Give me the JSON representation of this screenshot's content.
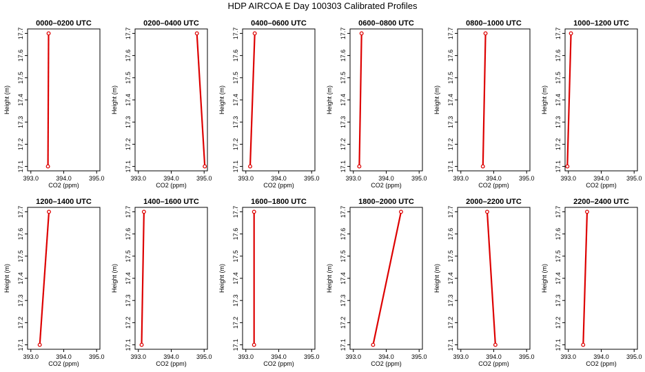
{
  "figure_title": "HDP AIRCOA E  Day 100303  Calibrated Profiles",
  "colors": {
    "series": "#dd0000",
    "axis": "#000000"
  },
  "chart_data": [
    {
      "type": "line",
      "title": "0000–0200 UTC",
      "xlabel": "CO2 (ppm)",
      "ylabel": "Height (m)",
      "xlim": [
        392.9,
        395.1
      ],
      "ylim": [
        17.08,
        17.72
      ],
      "xticks": [
        "393.0",
        "394.0",
        "395.0"
      ],
      "yticks": [
        "17.1",
        "17.2",
        "17.3",
        "17.4",
        "17.5",
        "17.6",
        "17.7"
      ],
      "points": [
        {
          "x": 393.52,
          "y": 17.1
        },
        {
          "x": 393.54,
          "y": 17.7
        }
      ]
    },
    {
      "type": "line",
      "title": "0200–0400 UTC",
      "xlabel": "CO2 (ppm)",
      "ylabel": "Height (m)",
      "xlim": [
        392.9,
        395.1
      ],
      "ylim": [
        17.08,
        17.72
      ],
      "xticks": [
        "393.0",
        "394.0",
        "395.0"
      ],
      "yticks": [
        "17.1",
        "17.2",
        "17.3",
        "17.4",
        "17.5",
        "17.6",
        "17.7"
      ],
      "points": [
        {
          "x": 395.02,
          "y": 17.1
        },
        {
          "x": 394.78,
          "y": 17.7
        }
      ]
    },
    {
      "type": "line",
      "title": "0400–0600 UTC",
      "xlabel": "CO2 (ppm)",
      "ylabel": "Height (m)",
      "xlim": [
        392.9,
        395.1
      ],
      "ylim": [
        17.08,
        17.72
      ],
      "xticks": [
        "393.0",
        "394.0",
        "395.0"
      ],
      "yticks": [
        "17.1",
        "17.2",
        "17.3",
        "17.4",
        "17.5",
        "17.6",
        "17.7"
      ],
      "points": [
        {
          "x": 393.13,
          "y": 17.1
        },
        {
          "x": 393.27,
          "y": 17.7
        }
      ]
    },
    {
      "type": "line",
      "title": "0600–0800 UTC",
      "xlabel": "CO2 (ppm)",
      "ylabel": "Height (m)",
      "xlim": [
        392.9,
        395.1
      ],
      "ylim": [
        17.08,
        17.72
      ],
      "xticks": [
        "393.0",
        "394.0",
        "395.0"
      ],
      "yticks": [
        "17.1",
        "17.2",
        "17.3",
        "17.4",
        "17.5",
        "17.6",
        "17.7"
      ],
      "points": [
        {
          "x": 393.18,
          "y": 17.1
        },
        {
          "x": 393.25,
          "y": 17.7
        }
      ]
    },
    {
      "type": "line",
      "title": "0800–1000 UTC",
      "xlabel": "CO2 (ppm)",
      "ylabel": "Height (m)",
      "xlim": [
        392.9,
        395.1
      ],
      "ylim": [
        17.08,
        17.72
      ],
      "xticks": [
        "393.0",
        "394.0",
        "395.0"
      ],
      "yticks": [
        "17.1",
        "17.2",
        "17.3",
        "17.4",
        "17.5",
        "17.6",
        "17.7"
      ],
      "points": [
        {
          "x": 393.67,
          "y": 17.1
        },
        {
          "x": 393.75,
          "y": 17.7
        }
      ]
    },
    {
      "type": "line",
      "title": "1000–1200 UTC",
      "xlabel": "CO2 (ppm)",
      "ylabel": "Height (m)",
      "xlim": [
        392.9,
        395.1
      ],
      "ylim": [
        17.08,
        17.72
      ],
      "xticks": [
        "393.0",
        "394.0",
        "395.0"
      ],
      "yticks": [
        "17.1",
        "17.2",
        "17.3",
        "17.4",
        "17.5",
        "17.6",
        "17.7"
      ],
      "points": [
        {
          "x": 392.97,
          "y": 17.1
        },
        {
          "x": 393.08,
          "y": 17.7
        }
      ]
    },
    {
      "type": "line",
      "title": "1200–1400 UTC",
      "xlabel": "CO2 (ppm)",
      "ylabel": "Height (m)",
      "xlim": [
        392.9,
        395.1
      ],
      "ylim": [
        17.08,
        17.72
      ],
      "xticks": [
        "393.0",
        "394.0",
        "395.0"
      ],
      "yticks": [
        "17.1",
        "17.2",
        "17.3",
        "17.4",
        "17.5",
        "17.6",
        "17.7"
      ],
      "points": [
        {
          "x": 393.27,
          "y": 17.1
        },
        {
          "x": 393.55,
          "y": 17.7
        }
      ]
    },
    {
      "type": "line",
      "title": "1400–1600 UTC",
      "xlabel": "CO2 (ppm)",
      "ylabel": "Height (m)",
      "xlim": [
        392.9,
        395.1
      ],
      "ylim": [
        17.08,
        17.72
      ],
      "xticks": [
        "393.0",
        "394.0",
        "395.0"
      ],
      "yticks": [
        "17.1",
        "17.2",
        "17.3",
        "17.4",
        "17.5",
        "17.6",
        "17.7"
      ],
      "points": [
        {
          "x": 393.1,
          "y": 17.1
        },
        {
          "x": 393.17,
          "y": 17.7
        }
      ]
    },
    {
      "type": "line",
      "title": "1600–1800 UTC",
      "xlabel": "CO2 (ppm)",
      "ylabel": "Height (m)",
      "xlim": [
        392.9,
        395.1
      ],
      "ylim": [
        17.08,
        17.72
      ],
      "xticks": [
        "393.0",
        "394.0",
        "395.0"
      ],
      "yticks": [
        "17.1",
        "17.2",
        "17.3",
        "17.4",
        "17.5",
        "17.6",
        "17.7"
      ],
      "points": [
        {
          "x": 393.25,
          "y": 17.1
        },
        {
          "x": 393.25,
          "y": 17.7
        }
      ]
    },
    {
      "type": "line",
      "title": "1800–2000 UTC",
      "xlabel": "CO2 (ppm)",
      "ylabel": "Height (m)",
      "xlim": [
        392.9,
        395.1
      ],
      "ylim": [
        17.08,
        17.72
      ],
      "xticks": [
        "393.0",
        "394.0",
        "395.0"
      ],
      "yticks": [
        "17.1",
        "17.2",
        "17.3",
        "17.4",
        "17.5",
        "17.6",
        "17.7"
      ],
      "points": [
        {
          "x": 393.6,
          "y": 17.1
        },
        {
          "x": 394.45,
          "y": 17.7
        }
      ]
    },
    {
      "type": "line",
      "title": "2000–2200 UTC",
      "xlabel": "CO2 (ppm)",
      "ylabel": "Height (m)",
      "xlim": [
        392.9,
        395.1
      ],
      "ylim": [
        17.08,
        17.72
      ],
      "xticks": [
        "393.0",
        "394.0",
        "395.0"
      ],
      "yticks": [
        "17.1",
        "17.2",
        "17.3",
        "17.4",
        "17.5",
        "17.6",
        "17.7"
      ],
      "points": [
        {
          "x": 394.05,
          "y": 17.1
        },
        {
          "x": 393.8,
          "y": 17.7
        }
      ]
    },
    {
      "type": "line",
      "title": "2200–2400 UTC",
      "xlabel": "CO2 (ppm)",
      "ylabel": "Height (m)",
      "xlim": [
        392.9,
        395.1
      ],
      "ylim": [
        17.08,
        17.72
      ],
      "xticks": [
        "393.0",
        "394.0",
        "395.0"
      ],
      "yticks": [
        "17.1",
        "17.2",
        "17.3",
        "17.4",
        "17.5",
        "17.6",
        "17.7"
      ],
      "points": [
        {
          "x": 393.45,
          "y": 17.1
        },
        {
          "x": 393.57,
          "y": 17.7
        }
      ]
    }
  ]
}
